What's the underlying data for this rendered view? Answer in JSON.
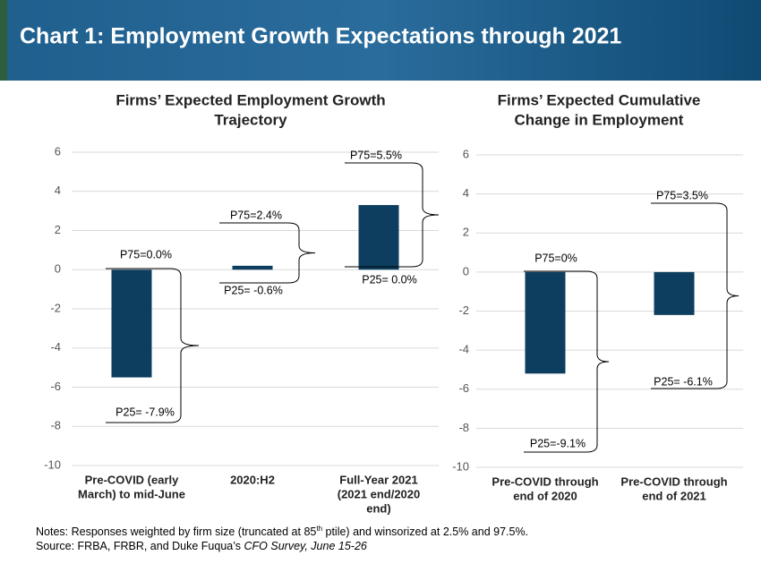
{
  "header": {
    "title": "Chart 1: Employment Growth Expectations through 2021"
  },
  "chart_data": [
    {
      "type": "bar",
      "title": [
        "Firms’ Expected Employment Growth",
        "Trajectory"
      ],
      "categories": [
        [
          "Pre-COVID (early",
          "March) to mid-June"
        ],
        [
          "2020:H2"
        ],
        [
          "Full-Year 2021",
          "(2021 end/2020",
          "end)"
        ]
      ],
      "values": [
        -5.5,
        0.2,
        3.3
      ],
      "color": "#0d3e5f",
      "ylim": [
        -10,
        6
      ],
      "yticks": [
        -10,
        -8,
        -6,
        -4,
        -2,
        0,
        2,
        4,
        6
      ],
      "grid": true,
      "annotations": [
        {
          "p75": "P75=0.0%",
          "p25": "P25= -7.9%"
        },
        {
          "p75": "P75=2.4%",
          "p25": "P25= -0.6%"
        },
        {
          "p75": "P75=5.5%",
          "p25": "P25= 0.0%"
        }
      ]
    },
    {
      "type": "bar",
      "title": [
        "Firms’ Expected Cumulative",
        "Change in Employment"
      ],
      "categories": [
        [
          "Pre-COVID through",
          "end of 2020"
        ],
        [
          "Pre-COVID through",
          "end of 2021"
        ]
      ],
      "values": [
        -5.2,
        -2.2
      ],
      "color": "#0d3e5f",
      "ylim": [
        -10,
        6
      ],
      "yticks": [
        -10,
        -8,
        -6,
        -4,
        -2,
        0,
        2,
        4,
        6
      ],
      "grid": true,
      "annotations": [
        {
          "p75": "P75=0%",
          "p25": "P25=-9.1%"
        },
        {
          "p75": "P75=3.5%",
          "p25": "P25= -6.1%"
        }
      ]
    }
  ],
  "notes": {
    "notes_a": "Notes: Responses weighted by firm size (truncated at 85",
    "notes_sup": "th",
    "notes_b": " ptile) and winsorized at 2.5% and 97.5%.",
    "source_a": "Source: FRBA, FRBR, and Duke Fuqua’s ",
    "source_b": "CFO Survey, June 15-26"
  }
}
